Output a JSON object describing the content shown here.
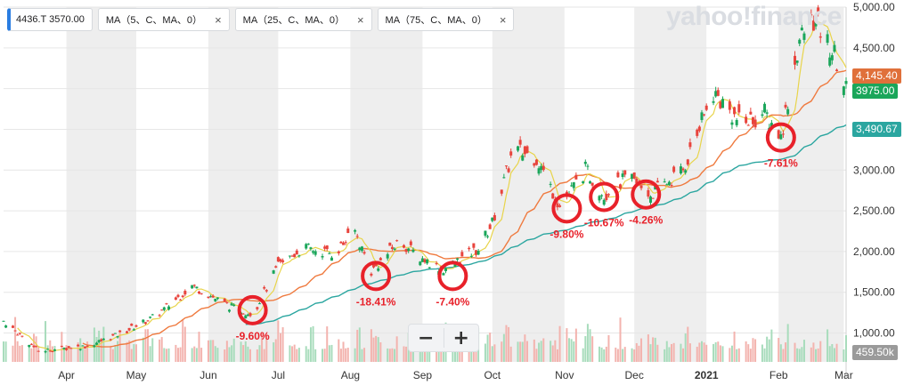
{
  "header": {
    "ticker_chip": "4436.T 3570.00",
    "ma_chips": [
      "MA（5、C、MA、0）",
      "MA（25、C、MA、0）",
      "MA（75、C、MA、0）"
    ],
    "close_glyph": "×",
    "watermark": "yahoo!finance"
  },
  "zoom": {
    "minus": "−",
    "plus": "+"
  },
  "colors": {
    "up": "#1aa65a",
    "down": "#e8443d",
    "ma5": "#e8d44a",
    "ma25": "#ef7a3f",
    "ma75": "#2ba6a0",
    "annotation": "#e8212a",
    "weekend_band": "#eeeeee"
  },
  "price_tags": [
    {
      "label": "4,145.40",
      "value": 4145.4,
      "color": "#e0703a"
    },
    {
      "label": "3975.00",
      "value": 3975,
      "color": "#1aa65a"
    },
    {
      "label": "3,490.67",
      "value": 3490.67,
      "color": "#2ba6a0"
    },
    {
      "label": "459.50k",
      "value": 900,
      "color": "#9a9a9a"
    }
  ],
  "chart_data": {
    "type": "candlestick",
    "ylim": [
      700,
      5000
    ],
    "y_ticks": [
      {
        "value": 1000,
        "label": "1,000.00"
      },
      {
        "value": 1500,
        "label": "1,500.00"
      },
      {
        "value": 2000,
        "label": "2,000.00"
      },
      {
        "value": 2500,
        "label": "2,500.00"
      },
      {
        "value": 3000,
        "label": "3,000.00"
      },
      {
        "value": 3500,
        "label": "3,500.00"
      },
      {
        "value": 4000,
        "label": "4,000.00"
      },
      {
        "value": 4500,
        "label": "4,500.00"
      },
      {
        "value": 5000,
        "label": "5,000.00"
      }
    ],
    "x_ticks": [
      {
        "label": "Apr",
        "date": "2020-04-01"
      },
      {
        "label": "May",
        "date": "2020-05-01"
      },
      {
        "label": "Jun",
        "date": "2020-06-01"
      },
      {
        "label": "Jul",
        "date": "2020-07-01"
      },
      {
        "label": "Aug",
        "date": "2020-08-01"
      },
      {
        "label": "Sep",
        "date": "2020-09-01"
      },
      {
        "label": "Oct",
        "date": "2020-10-01"
      },
      {
        "label": "Nov",
        "date": "2020-11-01"
      },
      {
        "label": "Dec",
        "date": "2020-12-01"
      },
      {
        "label": "2021",
        "date": "2021-01-01"
      },
      {
        "label": "Feb",
        "date": "2021-02-01"
      },
      {
        "label": "Mar",
        "date": "2021-03-01"
      }
    ],
    "date_range": [
      "2020-03-05",
      "2021-03-02"
    ],
    "close_anchors": [
      [
        "2020-03-05",
        1150
      ],
      [
        "2020-03-20",
        780
      ],
      [
        "2020-04-10",
        840
      ],
      [
        "2020-04-25",
        1000
      ],
      [
        "2020-05-10",
        1220
      ],
      [
        "2020-05-25",
        1580
      ],
      [
        "2020-06-10",
        1330
      ],
      [
        "2020-06-20",
        1230
      ],
      [
        "2020-07-01",
        1820
      ],
      [
        "2020-07-12",
        2050
      ],
      [
        "2020-07-25",
        1970
      ],
      [
        "2020-08-03",
        2250
      ],
      [
        "2020-08-10",
        1750
      ],
      [
        "2020-08-22",
        2130
      ],
      [
        "2020-08-31",
        1930
      ],
      [
        "2020-09-10",
        1780
      ],
      [
        "2020-09-25",
        2030
      ],
      [
        "2020-10-01",
        2350
      ],
      [
        "2020-10-10",
        3250
      ],
      [
        "2020-10-20",
        3150
      ],
      [
        "2020-10-30",
        2550
      ],
      [
        "2020-11-10",
        3000
      ],
      [
        "2020-11-18",
        2700
      ],
      [
        "2020-11-28",
        2900
      ],
      [
        "2020-12-08",
        2700
      ],
      [
        "2020-12-22",
        3000
      ],
      [
        "2021-01-04",
        3950
      ],
      [
        "2021-01-16",
        3550
      ],
      [
        "2021-01-26",
        3700
      ],
      [
        "2021-02-02",
        3400
      ],
      [
        "2021-02-10",
        4600
      ],
      [
        "2021-02-16",
        4850
      ],
      [
        "2021-02-25",
        4400
      ],
      [
        "2021-03-02",
        3975
      ]
    ],
    "series": [
      {
        "name": "MA（5、C、MA、0）",
        "color": "#e8d44a"
      },
      {
        "name": "MA（25、C、MA、0）",
        "color": "#ef7a3f"
      },
      {
        "name": "MA（75、C、MA、0）",
        "color": "#2ba6a0"
      }
    ],
    "annotations": [
      {
        "date": "2020-06-20",
        "value": 1280,
        "label": "-9.60%"
      },
      {
        "date": "2020-08-12",
        "value": 1700,
        "label": "-18.41%"
      },
      {
        "date": "2020-09-14",
        "value": 1700,
        "label": "-7.40%"
      },
      {
        "date": "2020-11-02",
        "value": 2530,
        "label": "-9.80%"
      },
      {
        "date": "2020-11-18",
        "value": 2670,
        "label": "-10.67%"
      },
      {
        "date": "2020-12-06",
        "value": 2700,
        "label": "-4.26%"
      },
      {
        "date": "2021-02-02",
        "value": 3400,
        "label": "-7.61%"
      }
    ]
  }
}
